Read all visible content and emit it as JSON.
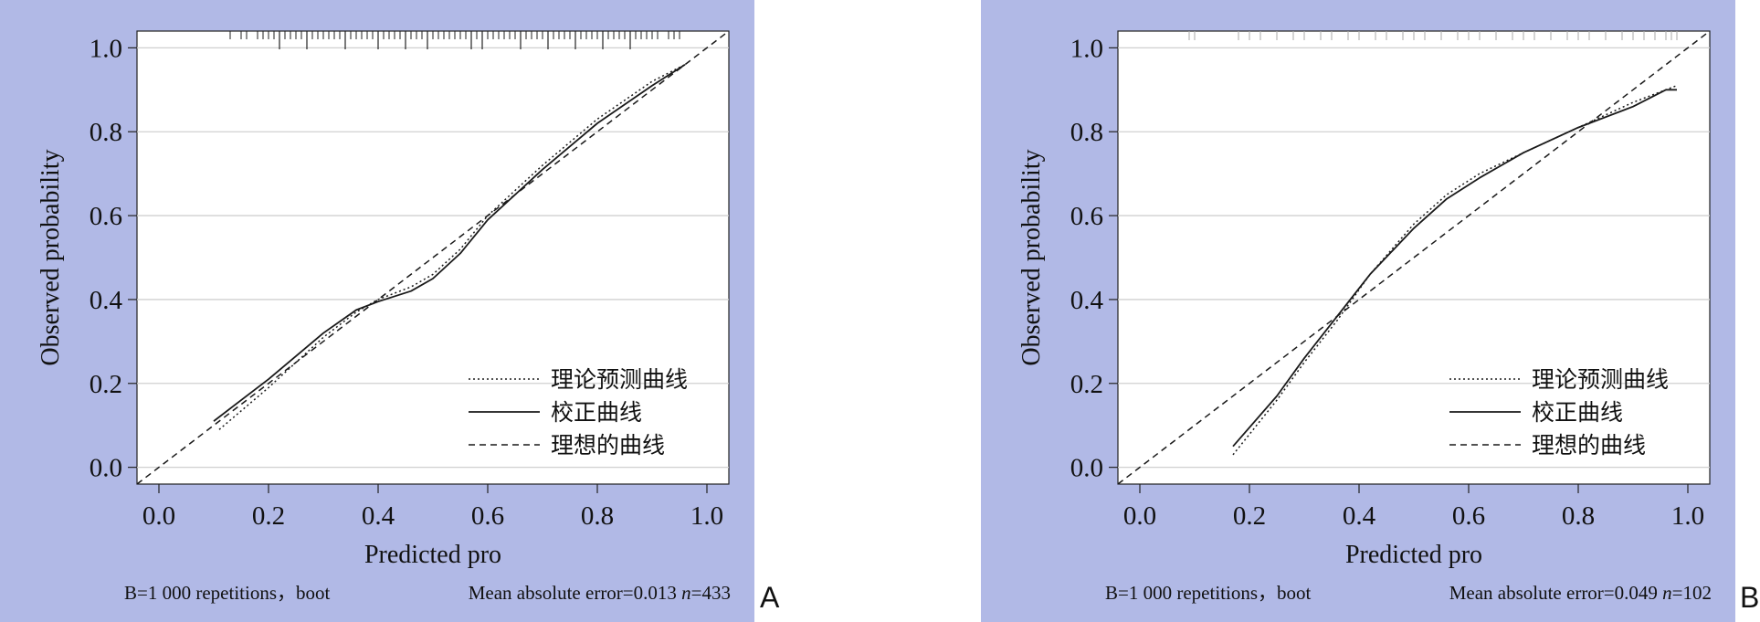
{
  "panels": [
    {
      "label": "A",
      "footer_left": "B=1 000 repetitions，boot",
      "footer_right_prefix": "Mean absolute error=0.013 ",
      "footer_right_n_label": "n",
      "footer_right_n_value": "=433"
    },
    {
      "label": "B",
      "footer_left": "B=1 000 repetitions，boot",
      "footer_right_prefix": "Mean absolute error=0.049 ",
      "footer_right_n_label": "n",
      "footer_right_n_value": "=102"
    }
  ],
  "colors": {
    "panel_background": "#b1b9e6",
    "plot_background": "#ffffff",
    "grid": "#d0d0d0",
    "line": "#1a1a1a"
  },
  "chart_data": [
    {
      "type": "line",
      "xlabel": "Predicted pro",
      "ylabel": "Observed probability",
      "xlim": [
        -0.04,
        1.04
      ],
      "ylim": [
        -0.04,
        1.04
      ],
      "x_ticks": [
        "0.0",
        "0.2",
        "0.4",
        "0.6",
        "0.8",
        "1.0"
      ],
      "y_ticks": [
        "0.0",
        "0.2",
        "0.4",
        "0.6",
        "0.8",
        "1.0"
      ],
      "grid": "horizontal",
      "legend_position": "bottom-right",
      "legend": [
        "理论预测曲线",
        "校正曲线",
        "理想的曲线"
      ],
      "series": [
        {
          "name": "理论预测曲线",
          "style": "dotted",
          "x": [
            0.11,
            0.2,
            0.3,
            0.36,
            0.4,
            0.46,
            0.5,
            0.55,
            0.6,
            0.65,
            0.7,
            0.8,
            0.9,
            0.96
          ],
          "y": [
            0.09,
            0.19,
            0.31,
            0.37,
            0.4,
            0.43,
            0.46,
            0.52,
            0.6,
            0.66,
            0.72,
            0.83,
            0.92,
            0.96
          ]
        },
        {
          "name": "校正曲线",
          "style": "solid",
          "x": [
            0.1,
            0.2,
            0.3,
            0.36,
            0.4,
            0.46,
            0.5,
            0.55,
            0.6,
            0.65,
            0.7,
            0.8,
            0.9,
            0.96
          ],
          "y": [
            0.11,
            0.21,
            0.32,
            0.375,
            0.395,
            0.42,
            0.45,
            0.51,
            0.59,
            0.65,
            0.71,
            0.82,
            0.91,
            0.96
          ]
        },
        {
          "name": "理想的曲线",
          "style": "dashed",
          "x": [
            -0.04,
            1.04
          ],
          "y": [
            -0.04,
            1.04
          ]
        }
      ],
      "rug": [
        0.13,
        0.15,
        0.16,
        0.18,
        0.19,
        0.2,
        0.21,
        0.23,
        0.24,
        0.25,
        0.26,
        0.28,
        0.29,
        0.3,
        0.31,
        0.32,
        0.33,
        0.35,
        0.36,
        0.37,
        0.38,
        0.39,
        0.41,
        0.42,
        0.43,
        0.44,
        0.45,
        0.46,
        0.47,
        0.48,
        0.5,
        0.51,
        0.52,
        0.53,
        0.54,
        0.55,
        0.56,
        0.57,
        0.58,
        0.6,
        0.61,
        0.62,
        0.63,
        0.64,
        0.65,
        0.67,
        0.68,
        0.69,
        0.7,
        0.72,
        0.73,
        0.74,
        0.75,
        0.77,
        0.78,
        0.79,
        0.8,
        0.82,
        0.83,
        0.84,
        0.85,
        0.87,
        0.88,
        0.89,
        0.9,
        0.91,
        0.93,
        0.94,
        0.95
      ],
      "rug_long": [
        0.22,
        0.27,
        0.34,
        0.4,
        0.45,
        0.49,
        0.57,
        0.59,
        0.66,
        0.71,
        0.76,
        0.81,
        0.86
      ]
    },
    {
      "type": "line",
      "xlabel": "Predicted pro",
      "ylabel": "Observed probability",
      "xlim": [
        -0.04,
        1.04
      ],
      "ylim": [
        -0.04,
        1.04
      ],
      "x_ticks": [
        "0.0",
        "0.2",
        "0.4",
        "0.6",
        "0.8",
        "1.0"
      ],
      "y_ticks": [
        "0.0",
        "0.2",
        "0.4",
        "0.6",
        "0.8",
        "1.0"
      ],
      "grid": "horizontal",
      "legend_position": "bottom-right",
      "legend": [
        "理论预测曲线",
        "校正曲线",
        "理想的曲线"
      ],
      "series": [
        {
          "name": "理论预测曲线",
          "style": "dotted",
          "x": [
            0.17,
            0.25,
            0.3,
            0.36,
            0.42,
            0.5,
            0.56,
            0.62,
            0.7,
            0.8,
            0.9,
            0.96,
            0.98
          ],
          "y": [
            0.03,
            0.16,
            0.25,
            0.35,
            0.46,
            0.58,
            0.65,
            0.7,
            0.75,
            0.81,
            0.87,
            0.9,
            0.91
          ]
        },
        {
          "name": "校正曲线",
          "style": "solid",
          "x": [
            0.17,
            0.25,
            0.3,
            0.36,
            0.42,
            0.5,
            0.56,
            0.62,
            0.7,
            0.8,
            0.9,
            0.96,
            0.98
          ],
          "y": [
            0.05,
            0.17,
            0.26,
            0.36,
            0.46,
            0.57,
            0.64,
            0.69,
            0.75,
            0.81,
            0.86,
            0.9,
            0.9
          ]
        },
        {
          "name": "理想的曲线",
          "style": "dashed",
          "x": [
            -0.04,
            1.04
          ],
          "y": [
            -0.04,
            1.04
          ]
        }
      ],
      "rug": [
        0.09,
        0.1,
        0.18,
        0.2,
        0.22,
        0.25,
        0.28,
        0.3,
        0.33,
        0.35,
        0.38,
        0.4,
        0.43,
        0.45,
        0.48,
        0.5,
        0.52,
        0.55,
        0.58,
        0.6,
        0.62,
        0.65,
        0.68,
        0.7,
        0.72,
        0.75,
        0.78,
        0.8,
        0.82,
        0.85,
        0.88,
        0.9,
        0.92,
        0.94,
        0.96,
        0.97,
        0.98
      ],
      "rug_long": []
    }
  ]
}
